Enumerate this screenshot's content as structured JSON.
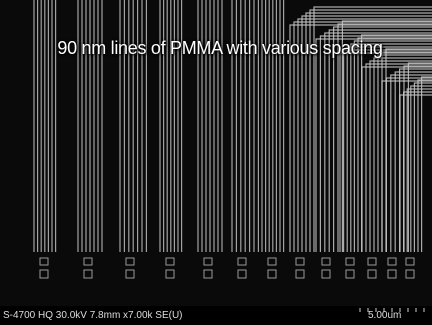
{
  "image": {
    "caption": "90 nm lines of PMMA with various spacing"
  },
  "info_bar": {
    "instrument": "S-4700 HQ 30.0kV 7.8mm x7.00k SE(U)",
    "scale": "5.00um"
  }
}
